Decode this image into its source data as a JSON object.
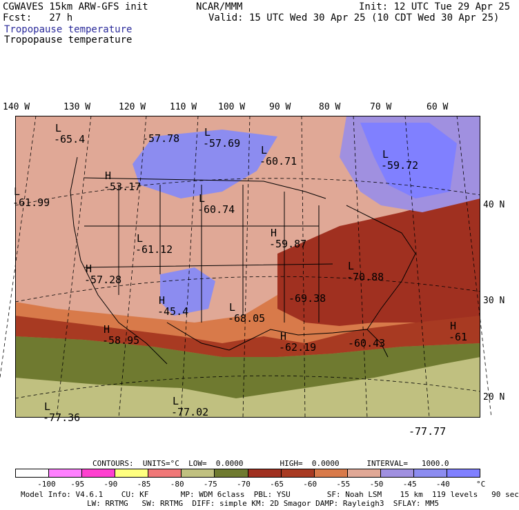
{
  "header": {
    "model_title": "CGWAVES 15km ARW-GFS init",
    "source": "NCAR/MMM",
    "init": "Init: 12 UTC Tue 29 Apr 25",
    "fcst_label": "Fcst:   27 h",
    "valid": "Valid: 15 UTC Wed 30 Apr 25 (10 CDT Wed 30 Apr 25)",
    "field_title_1": "Tropopause temperature",
    "field_title_2": "Tropopause temperature"
  },
  "lon_labels": [
    "140 W",
    "130 W",
    "120 W",
    "110 W",
    "100 W",
    "90 W",
    "80 W",
    "70 W",
    "60 W"
  ],
  "lat_labels": [
    "40 N",
    "30 N",
    "20 N"
  ],
  "map_labels": [
    {
      "t": "L",
      "v": "-65.4"
    },
    {
      "t": "",
      "v": "-57.78"
    },
    {
      "t": "L",
      "v": "-57.69"
    },
    {
      "t": "L",
      "v": "-60.71"
    },
    {
      "t": "L",
      "v": "-59.72"
    },
    {
      "t": "H",
      "v": "-53.17"
    },
    {
      "t": "L",
      "v": "-61.99"
    },
    {
      "t": "L",
      "v": "-60.74"
    },
    {
      "t": "H",
      "v": "-59.87"
    },
    {
      "t": "L",
      "v": "-61.12"
    },
    {
      "t": "H",
      "v": "-57.28"
    },
    {
      "t": "L",
      "v": "-70.88"
    },
    {
      "t": "",
      "v": "-69.38"
    },
    {
      "t": "H",
      "v": "-45.4"
    },
    {
      "t": "L",
      "v": "-68.05"
    },
    {
      "t": "H",
      "v": "-58.95"
    },
    {
      "t": "H",
      "v": "-62.19"
    },
    {
      "t": "",
      "v": "-60.43"
    },
    {
      "t": "H",
      "v": "-61"
    },
    {
      "t": "L",
      "v": "-77.02"
    },
    {
      "t": "L",
      "v": "-77.36"
    },
    {
      "t": "",
      "v": "-77.77"
    }
  ],
  "contours_line": "CONTOURS:  UNITS=°C  LOW=  0.0000        HIGH=  0.0000      INTERVAL=   1000.0",
  "colorbar": {
    "colors": [
      "#ffffff",
      "#ff80ff",
      "#ff40d0",
      "#ffff80",
      "#f07878",
      "#c0c080",
      "#6f7a30",
      "#a03020",
      "#a83a22",
      "#d87a4a",
      "#e0a896",
      "#a090e0",
      "#8c8cf0",
      "#8080ff"
    ],
    "ticks": [
      "-100",
      "-95",
      "-90",
      "-85",
      "-80",
      "-75",
      "-70",
      "-65",
      "-60",
      "-55",
      "-50",
      "-45",
      "-40"
    ],
    "unit": "°C"
  },
  "footer": {
    "line1": "Model Info: V4.6.1    CU: KF       MP: WDM 6class  PBL: YSU        SF: Noah LSM    15 km  119 levels   90 sec",
    "line2": "LW: RRTMG   SW: RRTMG  DIFF: simple KM: 2D Smagor DAMP: Rayleigh3  SFLAY: MM5"
  }
}
